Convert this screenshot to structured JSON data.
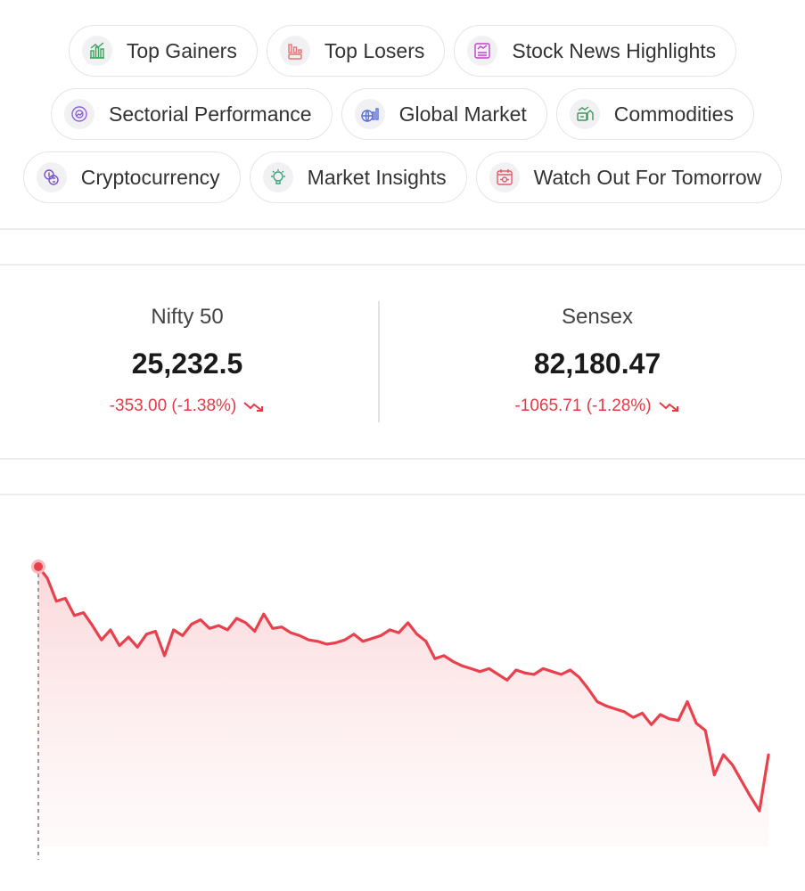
{
  "chips": [
    {
      "label": "Top Gainers",
      "icon": "bull-icon",
      "color": "#3aa35a"
    },
    {
      "label": "Top Losers",
      "icon": "bear-icon",
      "color": "#e57373"
    },
    {
      "label": "Stock News Highlights",
      "icon": "news-icon",
      "color": "#c042c8"
    },
    {
      "label": "Sectorial Performance",
      "icon": "pie-icon",
      "color": "#8c62d8"
    },
    {
      "label": "Global Market",
      "icon": "globe-chart-icon",
      "color": "#5a6fd8"
    },
    {
      "label": "Commodities",
      "icon": "commodity-icon",
      "color": "#3a9a5a"
    },
    {
      "label": "Cryptocurrency",
      "icon": "crypto-coins-icon",
      "color": "#7a52c8"
    },
    {
      "label": "Market Insights",
      "icon": "bulb-icon",
      "color": "#3aa37a"
    },
    {
      "label": "Watch Out For Tomorrow",
      "icon": "calendar-icon",
      "color": "#e55a6a"
    }
  ],
  "indices": [
    {
      "name": "Nifty 50",
      "value": "25,232.5",
      "change": "-353.00 (-1.38%)"
    },
    {
      "name": "Sensex",
      "value": "82,180.47",
      "change": "-1065.71 (-1.28%)"
    }
  ],
  "chart_data": {
    "type": "area",
    "series": [
      {
        "values": [
          100,
          99.2,
          97.6,
          97.8,
          96.6,
          96.8,
          95.9,
          94.9,
          95.6,
          94.5,
          95.1,
          94.4,
          95.3,
          95.5,
          93.8,
          95.6,
          95.2,
          96.0,
          96.3,
          95.7,
          95.9,
          95.6,
          96.4,
          96.1,
          95.5,
          96.7,
          95.7,
          95.8,
          95.4,
          95.2,
          94.9,
          94.8,
          94.6,
          94.7,
          94.9,
          95.3,
          94.8,
          95.0,
          95.2,
          95.6,
          95.4,
          96.1,
          95.3,
          94.8,
          93.6,
          93.8,
          93.4,
          93.1,
          92.9,
          92.7,
          92.9,
          92.5,
          92.1,
          92.8,
          92.6,
          92.5,
          92.9,
          92.7,
          92.5,
          92.8,
          92.3,
          91.5,
          90.6,
          90.3,
          90.1,
          89.9,
          89.5,
          89.8,
          89.0,
          89.7,
          89.4,
          89.3,
          90.6,
          89.1,
          88.6,
          85.5,
          86.9,
          86.2,
          85.1,
          84.0,
          83.0,
          86.9
        ]
      }
    ],
    "stroke_color": "#e8414d",
    "fill_color": "#fbe3e5",
    "grid": false
  }
}
